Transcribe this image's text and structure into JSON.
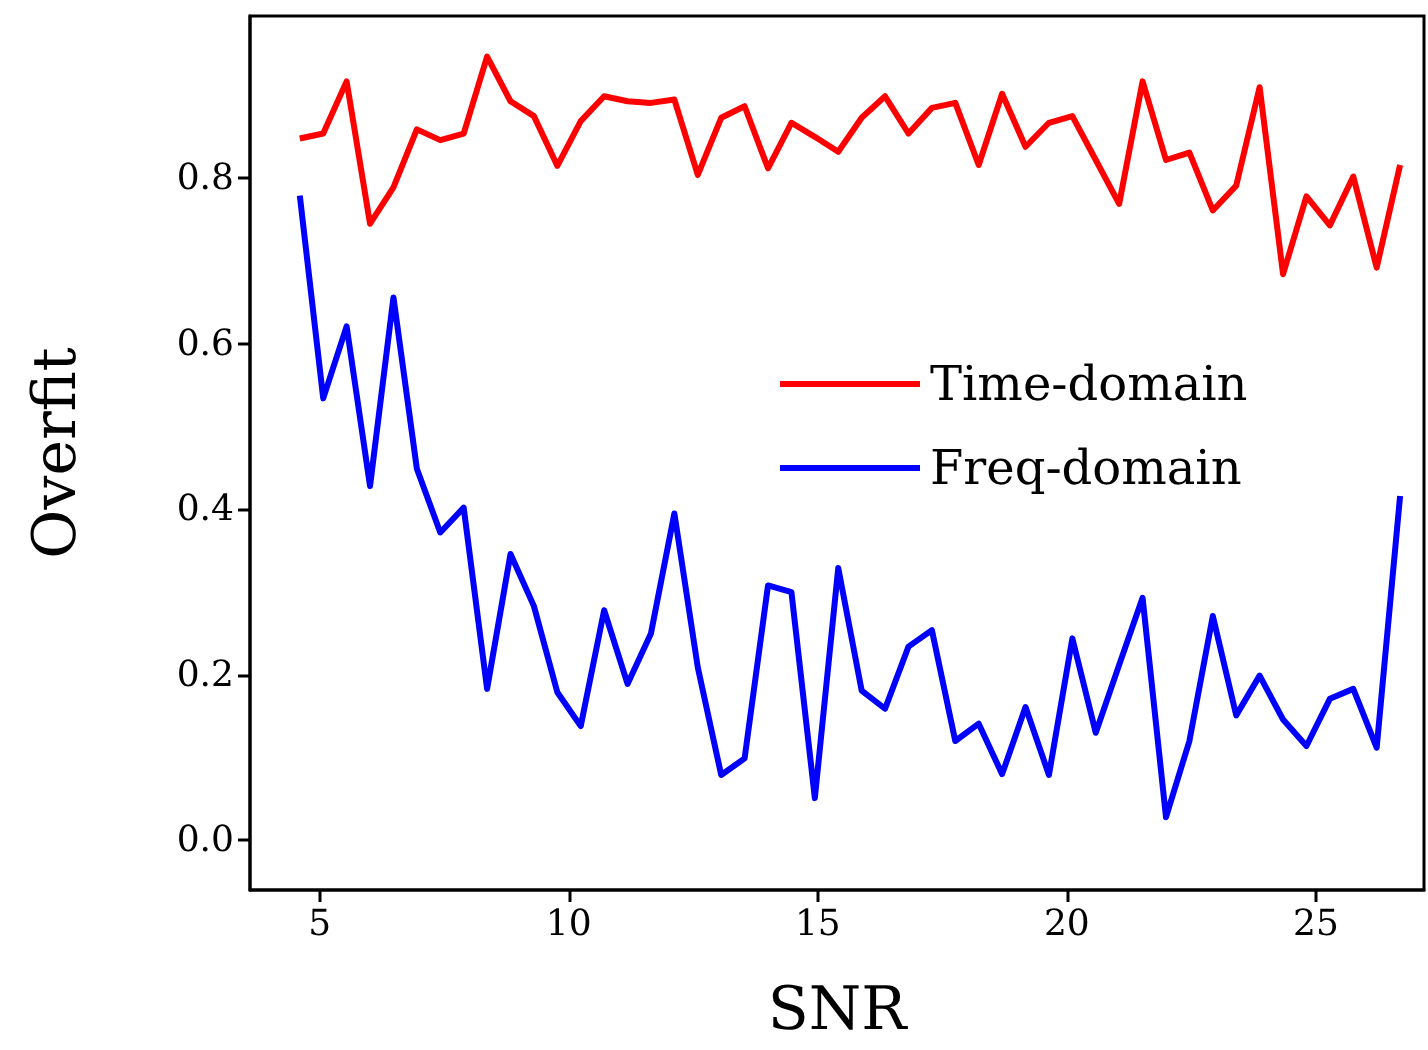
{
  "chart_data": {
    "type": "line",
    "xlabel": "SNR",
    "ylabel": "Overfit",
    "x": [
      4.6,
      5.07,
      5.54,
      6.01,
      6.48,
      6.95,
      7.42,
      7.89,
      8.36,
      8.83,
      9.3,
      9.77,
      10.24,
      10.71,
      11.18,
      11.65,
      12.12,
      12.59,
      13.06,
      13.53,
      14.0,
      14.47,
      14.94,
      15.41,
      15.88,
      16.35,
      16.82,
      17.29,
      17.76,
      18.23,
      18.7,
      19.17,
      19.64,
      20.11,
      20.58,
      21.05,
      21.52,
      21.99,
      22.46,
      22.93,
      23.4,
      23.87,
      24.34,
      24.81,
      25.28,
      25.75,
      26.22,
      26.69
    ],
    "series": [
      {
        "name": "Time-domain",
        "color": "#ff0000",
        "values": [
          0.848,
          0.854,
          0.917,
          0.745,
          0.789,
          0.859,
          0.846,
          0.854,
          0.947,
          0.893,
          0.875,
          0.815,
          0.869,
          0.899,
          0.893,
          0.891,
          0.895,
          0.804,
          0.873,
          0.887,
          0.812,
          0.867,
          0.85,
          0.832,
          0.873,
          0.899,
          0.854,
          0.885,
          0.891,
          0.816,
          0.902,
          0.838,
          0.867,
          0.875,
          0.822,
          0.769,
          0.917,
          0.822,
          0.831,
          0.761,
          0.791,
          0.91,
          0.684,
          0.778,
          0.743,
          0.802,
          0.692,
          0.816
        ]
      },
      {
        "name": "Freq-domain",
        "color": "#0000ff",
        "values": [
          0.779,
          0.534,
          0.621,
          0.428,
          0.656,
          0.449,
          0.372,
          0.402,
          0.183,
          0.346,
          0.283,
          0.179,
          0.138,
          0.278,
          0.189,
          0.25,
          0.395,
          0.209,
          0.079,
          0.099,
          0.308,
          0.3,
          0.051,
          0.329,
          0.181,
          0.159,
          0.234,
          0.254,
          0.12,
          0.141,
          0.08,
          0.161,
          0.079,
          0.244,
          0.13,
          0.212,
          0.293,
          0.028,
          0.12,
          0.271,
          0.151,
          0.199,
          0.146,
          0.114,
          0.171,
          0.183,
          0.112,
          0.416
        ]
      }
    ],
    "xlim": [
      3.6,
      27.17
    ],
    "xticks": [
      5,
      10,
      15,
      20,
      25
    ],
    "ylim": [
      -0.06,
      0.996
    ],
    "yticks": [
      {
        "value": 0,
        "label": "0.0"
      },
      {
        "value": 0.2,
        "label": "0.2"
      },
      {
        "value": 0.4,
        "label": "0.4"
      },
      {
        "value": 0.6,
        "label": "0.6"
      },
      {
        "value": 0.8,
        "label": "0.8"
      }
    ],
    "legend": "right",
    "grid": false,
    "marker": "none",
    "line_style": "solid"
  }
}
